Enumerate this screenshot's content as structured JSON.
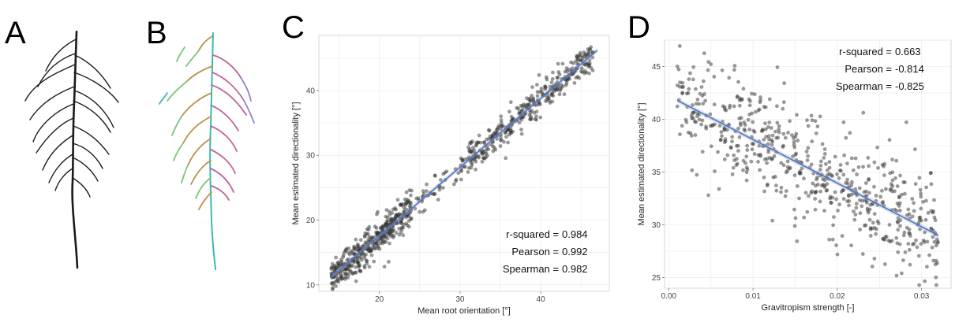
{
  "panels": {
    "a": {
      "letter": "A"
    },
    "b": {
      "letter": "B"
    },
    "c": {
      "letter": "C"
    },
    "d": {
      "letter": "D"
    }
  },
  "chart_data": [
    {
      "panel": "C",
      "type": "scatter",
      "xlabel": "Mean root orientation [°]",
      "ylabel": "Mean estimated directionality [°]",
      "xlim": [
        12.5,
        48.5
      ],
      "ylim": [
        9,
        48.5
      ],
      "xticks": [
        20,
        30,
        40
      ],
      "yticks": [
        10,
        20,
        30,
        40
      ],
      "grid": true,
      "point_color": "#333333",
      "fit_color": "#4a78c8",
      "fit_line": {
        "x": [
          14,
          47
        ],
        "y": [
          11.2,
          46.2
        ]
      },
      "stats": {
        "r_squared": {
          "label": "r-squared =",
          "value": "0.984"
        },
        "pearson": {
          "label": "Pearson =",
          "value": "0.992"
        },
        "spearman": {
          "label": "Spearman =",
          "value": "0.982"
        }
      },
      "clusters": [
        {
          "x": [
            14,
            24
          ],
          "y_slope": 1.06,
          "y_intercept": -3.6,
          "noise": 1.3,
          "n": 420
        },
        {
          "x": [
            24,
            30
          ],
          "y_slope": 1.06,
          "y_intercept": -3.6,
          "noise": 1.1,
          "n": 40
        },
        {
          "x": [
            30,
            46.5
          ],
          "y_slope": 1.06,
          "y_intercept": -3.6,
          "noise": 1.2,
          "n": 380
        }
      ]
    },
    {
      "panel": "D",
      "type": "scatter",
      "xlabel": "Gravitropism strength [-]",
      "ylabel": "Mean estimated directionality [°]",
      "xlim": [
        -0.0005,
        0.0335
      ],
      "ylim": [
        24,
        47.5
      ],
      "xticks": [
        0.0,
        0.01,
        0.02,
        0.03
      ],
      "xtick_labels": [
        "0.00",
        "0.01",
        "0.02",
        "0.03"
      ],
      "yticks": [
        25,
        30,
        35,
        40,
        45
      ],
      "grid": true,
      "point_color": "#333333",
      "fit_color": "#4a78c8",
      "fit_line": {
        "x": [
          0.001,
          0.032
        ],
        "y": [
          41.8,
          29.0
        ]
      },
      "stats": {
        "r_squared": {
          "label": "r-squared =",
          "value": "0.663"
        },
        "pearson": {
          "label": "Pearson =",
          "value": "-0.814"
        },
        "spearman": {
          "label": "Spearman =",
          "value": "-0.825"
        }
      },
      "cloud": {
        "x": [
          0.001,
          0.032
        ],
        "y_slope": -413,
        "y_intercept": 42.2,
        "noise": 2.6,
        "n": 600
      }
    }
  ]
}
